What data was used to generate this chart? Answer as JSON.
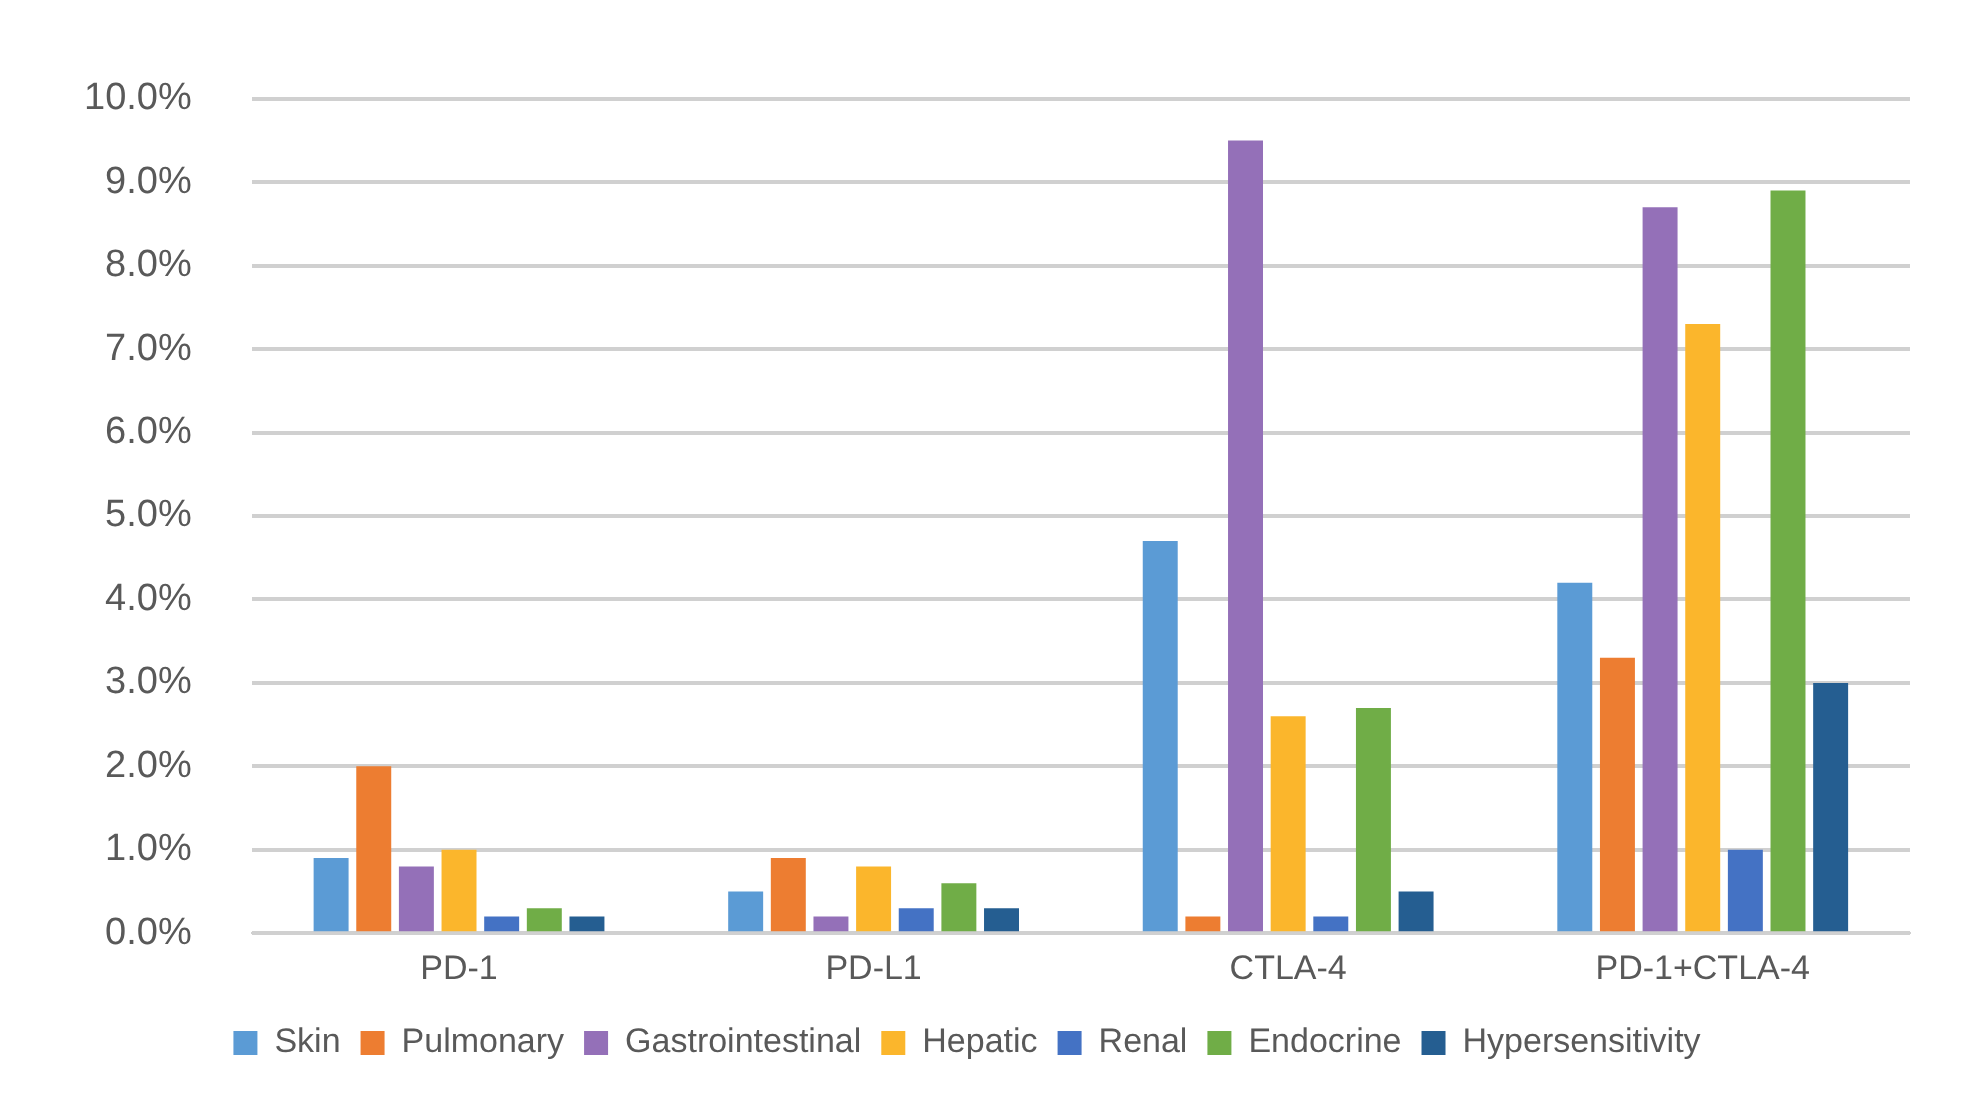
{
  "chart_data": {
    "type": "bar",
    "categories": [
      "PD-1",
      "PD-L1",
      "CTLA-4",
      "PD-1+CTLA-4"
    ],
    "series": [
      {
        "name": "Skin",
        "color": "#5b9bd5",
        "values": [
          0.9,
          0.5,
          4.7,
          4.2
        ]
      },
      {
        "name": "Pulmonary",
        "color": "#ed7d31",
        "values": [
          2.0,
          0.9,
          0.2,
          3.3
        ]
      },
      {
        "name": "Gastrointestinal",
        "color": "#9470b8",
        "values": [
          0.8,
          0.2,
          9.5,
          8.7
        ]
      },
      {
        "name": "Hepatic",
        "color": "#fbb62c",
        "values": [
          1.0,
          0.8,
          2.6,
          7.3
        ]
      },
      {
        "name": "Renal",
        "color": "#4472c4",
        "values": [
          0.2,
          0.3,
          0.2,
          1.0
        ]
      },
      {
        "name": "Endocrine",
        "color": "#70ad47",
        "values": [
          0.3,
          0.6,
          2.7,
          8.9
        ]
      },
      {
        "name": "Hypersensitivity",
        "color": "#255e91",
        "values": [
          0.2,
          0.3,
          0.5,
          3.0
        ]
      }
    ],
    "ylim": [
      0,
      10
    ],
    "yticks": [
      {
        "value": 0,
        "label": "0.0%"
      },
      {
        "value": 1,
        "label": "1.0%"
      },
      {
        "value": 2,
        "label": "2.0%"
      },
      {
        "value": 3,
        "label": "3.0%"
      },
      {
        "value": 4,
        "label": "4.0%"
      },
      {
        "value": 5,
        "label": "5.0%"
      },
      {
        "value": 6,
        "label": "6.0%"
      },
      {
        "value": 7,
        "label": "7.0%"
      },
      {
        "value": 8,
        "label": "8.0%"
      },
      {
        "value": 9,
        "label": "9.0%"
      },
      {
        "value": 10,
        "label": "10.0%"
      }
    ],
    "grid": "y",
    "legend": "bottom"
  }
}
